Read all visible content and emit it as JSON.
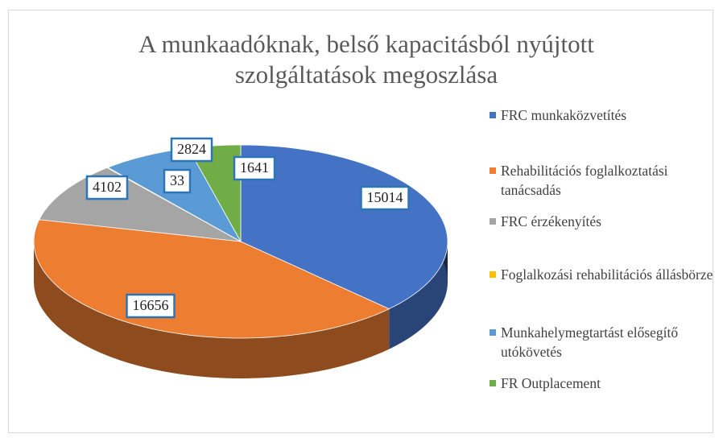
{
  "chart_data": {
    "type": "pie",
    "title": "A munkaadóknak, belső kapacitásból nyújtott szolgáltatások megoszlása",
    "categories": [
      "FRC munkaközvetítés",
      "Rehabilitációs foglalkoztatási tanácsadás",
      "FRC érzékenyítés",
      "Foglalkozási rehabilitációs állásbörze",
      "Munkahelymegtartást elősegítő utókövetés",
      "FR Outplacement"
    ],
    "values": [
      15014,
      16656,
      4102,
      33,
      2824,
      1641
    ],
    "colors": [
      "#4472c4",
      "#ed7d31",
      "#a5a5a5",
      "#ffc000",
      "#5b9bd5",
      "#70ad47"
    ],
    "legend": "right"
  }
}
